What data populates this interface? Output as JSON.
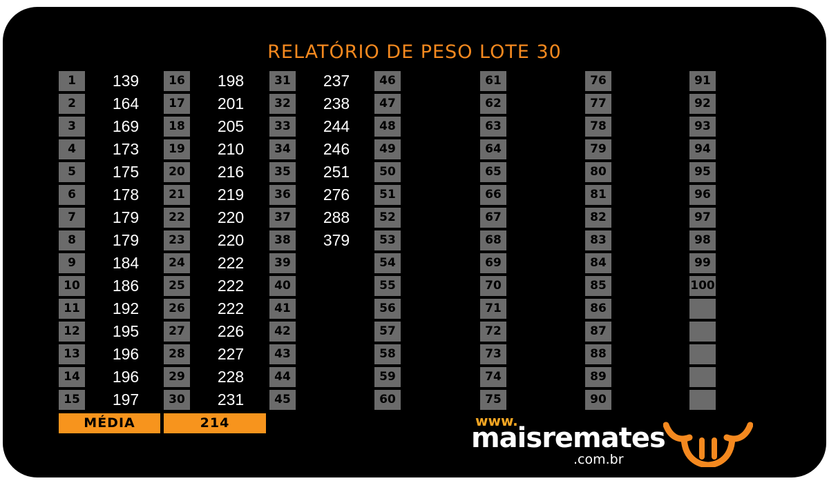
{
  "title": "RELATÓRIO DE PESO LOTE 30",
  "columns": [
    [
      [
        "1",
        "139"
      ],
      [
        "2",
        "164"
      ],
      [
        "3",
        "169"
      ],
      [
        "4",
        "173"
      ],
      [
        "5",
        "175"
      ],
      [
        "6",
        "178"
      ],
      [
        "7",
        "179"
      ],
      [
        "8",
        "179"
      ],
      [
        "9",
        "184"
      ],
      [
        "10",
        "186"
      ],
      [
        "11",
        "192"
      ],
      [
        "12",
        "195"
      ],
      [
        "13",
        "196"
      ],
      [
        "14",
        "196"
      ],
      [
        "15",
        "197"
      ]
    ],
    [
      [
        "16",
        "198"
      ],
      [
        "17",
        "201"
      ],
      [
        "18",
        "205"
      ],
      [
        "19",
        "210"
      ],
      [
        "20",
        "216"
      ],
      [
        "21",
        "219"
      ],
      [
        "22",
        "220"
      ],
      [
        "23",
        "220"
      ],
      [
        "24",
        "222"
      ],
      [
        "25",
        "222"
      ],
      [
        "26",
        "222"
      ],
      [
        "27",
        "226"
      ],
      [
        "28",
        "227"
      ],
      [
        "29",
        "228"
      ],
      [
        "30",
        "231"
      ]
    ],
    [
      [
        "31",
        "237"
      ],
      [
        "32",
        "238"
      ],
      [
        "33",
        "244"
      ],
      [
        "34",
        "246"
      ],
      [
        "35",
        "251"
      ],
      [
        "36",
        "276"
      ],
      [
        "37",
        "288"
      ],
      [
        "38",
        "379"
      ],
      [
        "39",
        ""
      ],
      [
        "40",
        ""
      ],
      [
        "41",
        ""
      ],
      [
        "42",
        ""
      ],
      [
        "43",
        ""
      ],
      [
        "44",
        ""
      ],
      [
        "45",
        ""
      ]
    ],
    [
      [
        "46",
        ""
      ],
      [
        "47",
        ""
      ],
      [
        "48",
        ""
      ],
      [
        "49",
        ""
      ],
      [
        "50",
        ""
      ],
      [
        "51",
        ""
      ],
      [
        "52",
        ""
      ],
      [
        "53",
        ""
      ],
      [
        "54",
        ""
      ],
      [
        "55",
        ""
      ],
      [
        "56",
        ""
      ],
      [
        "57",
        ""
      ],
      [
        "58",
        ""
      ],
      [
        "59",
        ""
      ],
      [
        "60",
        ""
      ]
    ],
    [
      [
        "61",
        ""
      ],
      [
        "62",
        ""
      ],
      [
        "63",
        ""
      ],
      [
        "64",
        ""
      ],
      [
        "65",
        ""
      ],
      [
        "66",
        ""
      ],
      [
        "67",
        ""
      ],
      [
        "68",
        ""
      ],
      [
        "69",
        ""
      ],
      [
        "70",
        ""
      ],
      [
        "71",
        ""
      ],
      [
        "72",
        ""
      ],
      [
        "73",
        ""
      ],
      [
        "74",
        ""
      ],
      [
        "75",
        ""
      ]
    ],
    [
      [
        "76",
        ""
      ],
      [
        "77",
        ""
      ],
      [
        "78",
        ""
      ],
      [
        "79",
        ""
      ],
      [
        "80",
        ""
      ],
      [
        "81",
        ""
      ],
      [
        "82",
        ""
      ],
      [
        "83",
        ""
      ],
      [
        "84",
        ""
      ],
      [
        "85",
        ""
      ],
      [
        "86",
        ""
      ],
      [
        "87",
        ""
      ],
      [
        "88",
        ""
      ],
      [
        "89",
        ""
      ],
      [
        "90",
        ""
      ]
    ],
    [
      [
        "91",
        ""
      ],
      [
        "92",
        ""
      ],
      [
        "93",
        ""
      ],
      [
        "94",
        ""
      ],
      [
        "95",
        ""
      ],
      [
        "96",
        ""
      ],
      [
        "97",
        ""
      ],
      [
        "98",
        ""
      ],
      [
        "99",
        ""
      ],
      [
        "100",
        ""
      ],
      [
        "",
        ""
      ],
      [
        "",
        ""
      ],
      [
        "",
        ""
      ],
      [
        "",
        ""
      ],
      [
        "",
        ""
      ]
    ]
  ],
  "average": {
    "label": "MÉDIA",
    "value": "214"
  },
  "brand": {
    "www": "www.",
    "name": "maisremates",
    "domain": ".com.br"
  },
  "colors": {
    "accent": "#f5891f",
    "background": "#000000",
    "cell": "#6b6b6b"
  },
  "icons": {
    "logo": "bull-head-icon"
  }
}
